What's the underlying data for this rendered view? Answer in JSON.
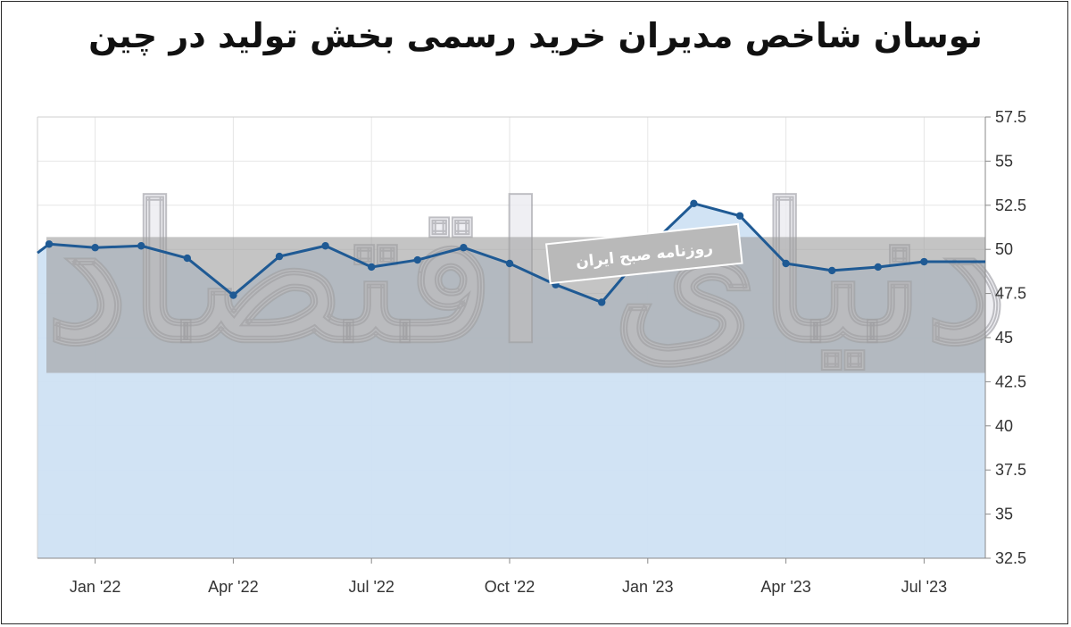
{
  "title": "نوسان شاخص مدیران خرید رسمی بخش تولید در چین",
  "stamp": "روزنامه صبح ایران",
  "watermark": "دنیای اقتصاد",
  "colors": {
    "line": "#1f5a94",
    "area": "#cfe2f3",
    "band": "#a0a0a0",
    "grid": "#e6e6e6",
    "axis": "#8a8a8a"
  },
  "chart_data": {
    "type": "line",
    "ylim": [
      32.5,
      57.5
    ],
    "yticks": [
      "57.5",
      "55",
      "52.5",
      "50",
      "47.5",
      "45",
      "42.5",
      "40",
      "37.5",
      "35",
      "32.5"
    ],
    "ytick_values": [
      57.5,
      55,
      52.5,
      50,
      47.5,
      45,
      42.5,
      40,
      37.5,
      35,
      32.5
    ],
    "y_axis_side": "right",
    "xticks": [
      "Jan '22",
      "Apr '22",
      "Jul '22",
      "Oct '22",
      "Jan '23",
      "Apr '23",
      "Jul '23"
    ],
    "xtick_index": [
      1,
      4,
      7,
      10,
      13,
      16,
      19
    ],
    "band": {
      "from": 43,
      "to": 50.7
    },
    "area_fill": true,
    "grid": true,
    "series": [
      {
        "x": [
          "Dec '21",
          "Jan '22",
          "Feb '22",
          "Mar '22",
          "Apr '22",
          "May '22",
          "Jun '22",
          "Jul '22",
          "Aug '22",
          "Sep '22",
          "Oct '22",
          "Nov '22",
          "Dec '22",
          "Jan '23",
          "Feb '23",
          "Mar '23",
          "Apr '23",
          "May '23",
          "Jun '23",
          "Jul '23"
        ],
        "values": [
          50.3,
          50.1,
          50.2,
          49.5,
          47.4,
          49.6,
          50.2,
          49.0,
          49.4,
          50.1,
          49.2,
          48.0,
          47.0,
          50.1,
          52.6,
          51.9,
          49.2,
          48.8,
          49.0,
          49.3
        ]
      }
    ]
  }
}
